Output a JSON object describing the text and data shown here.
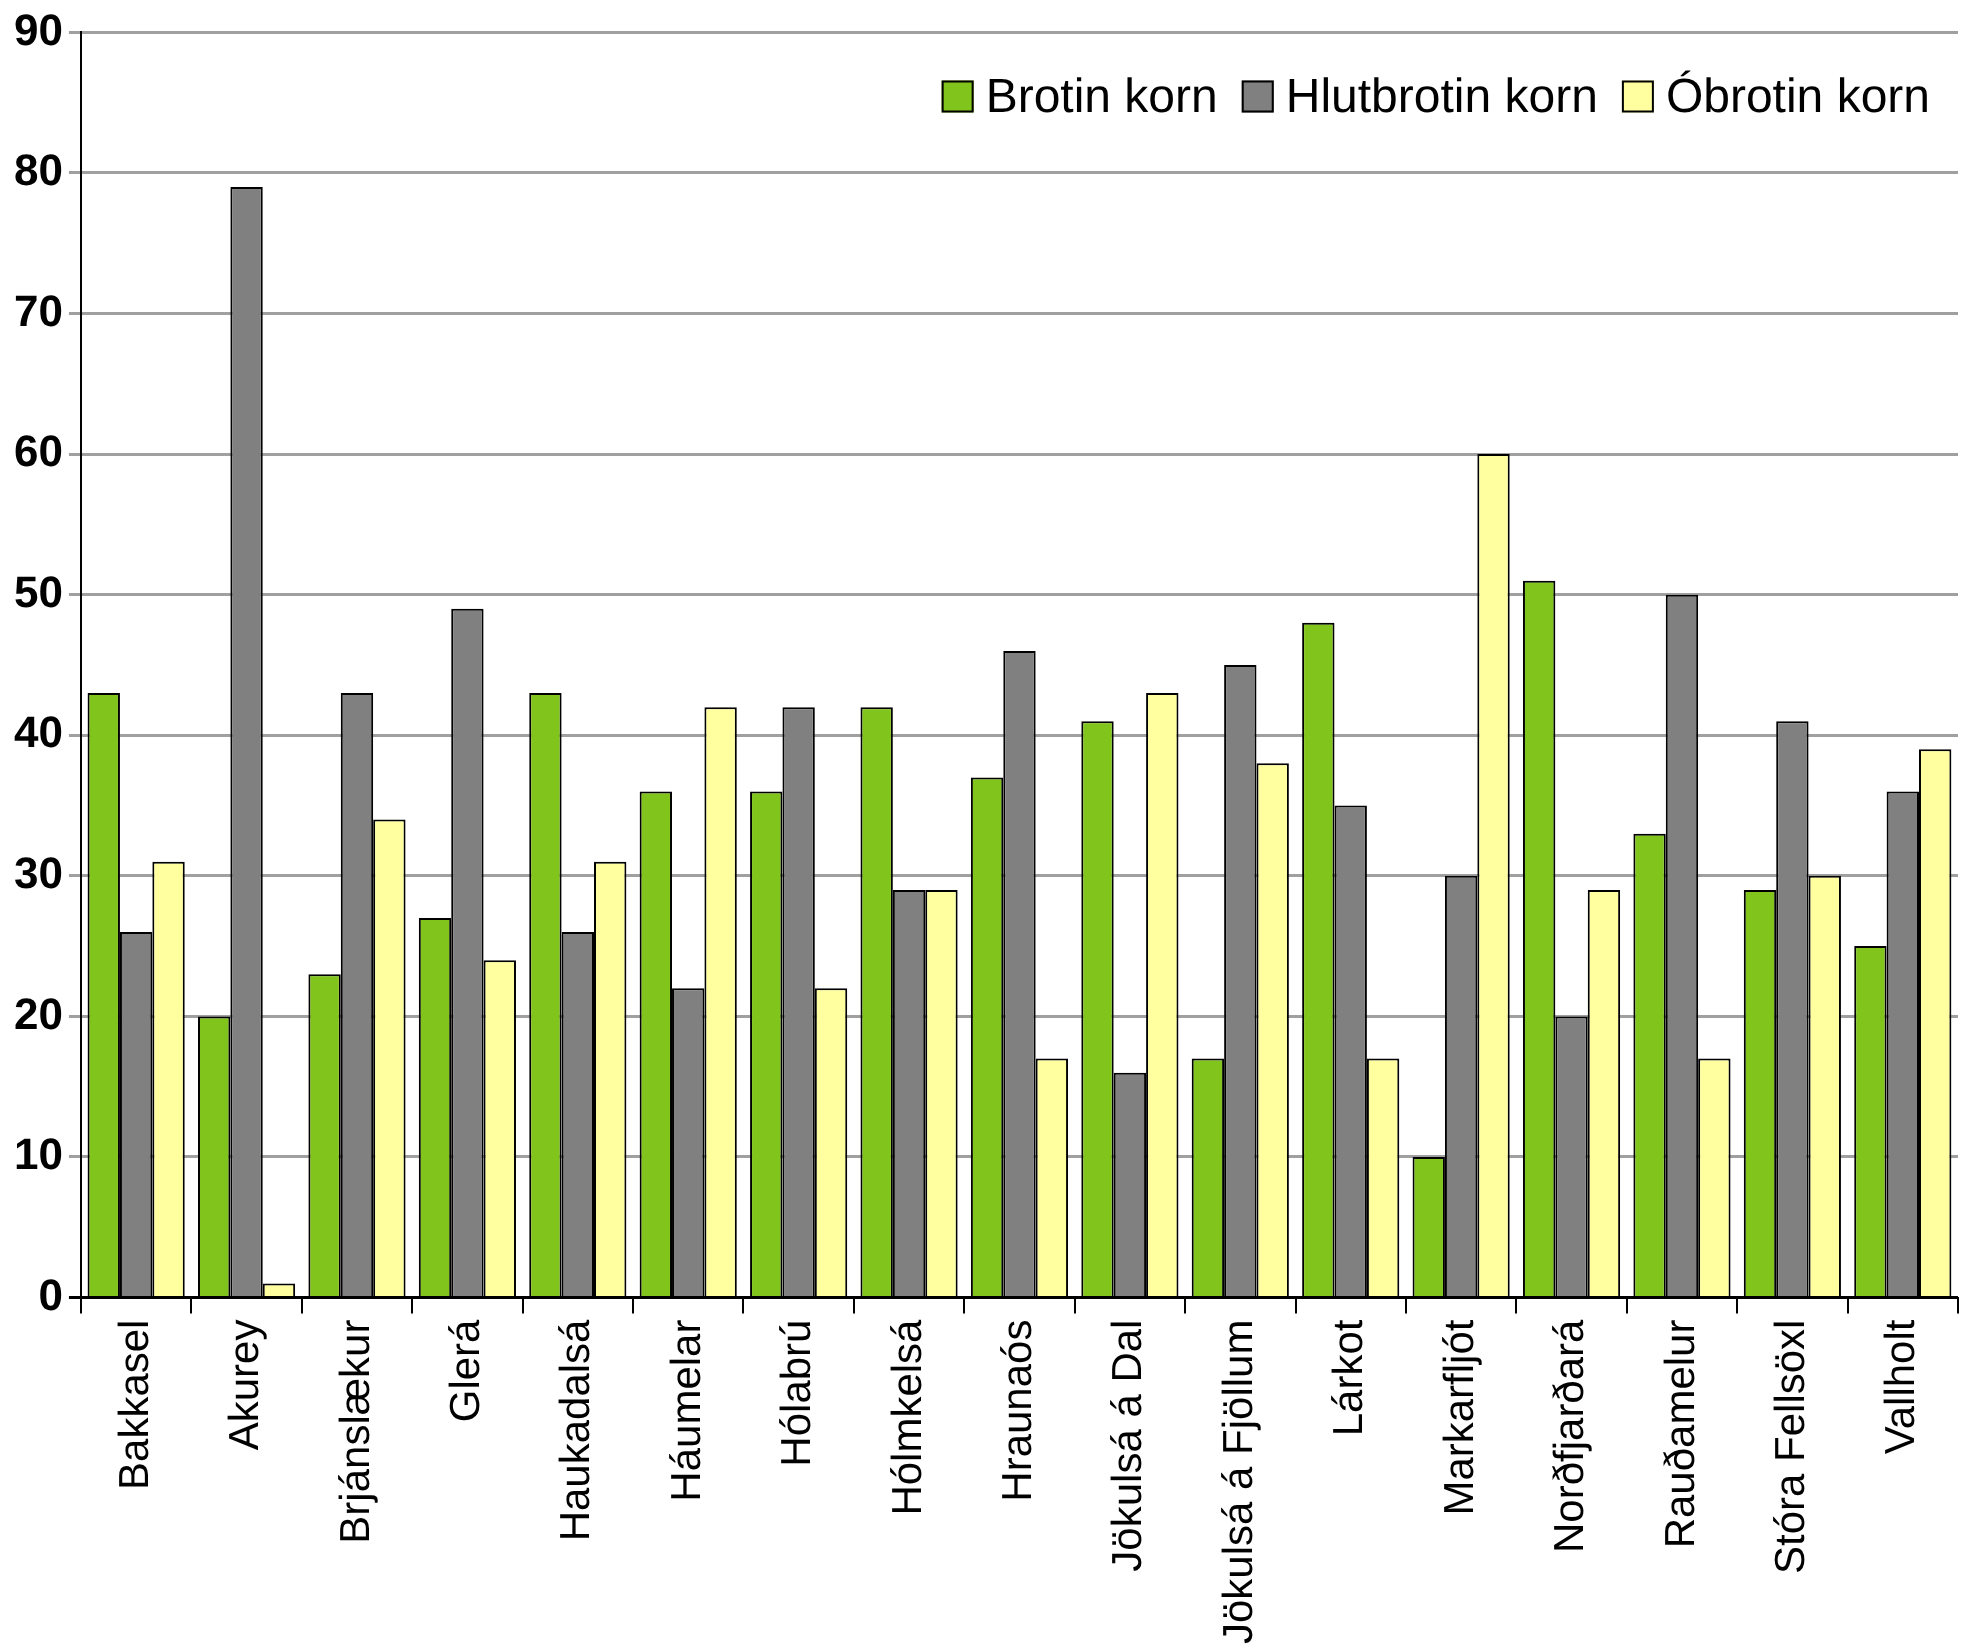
{
  "chart_data": {
    "type": "bar",
    "categories": [
      "Bakkasel",
      "Akurey",
      "Brjánslækur",
      "Glerá",
      "Haukadalsá",
      "Háumelar",
      "Hólabrú",
      "Hólmkelsá",
      "Hraunaós",
      "Jökulsá á Dal",
      "Jökulsá á Fjöllum",
      "Lárkot",
      "Markarfljót",
      "Norðfjarðará",
      "Rauðamelur",
      "Stóra Fellsöxl",
      "Vallholt"
    ],
    "series": [
      {
        "name": "Brotin korn",
        "color": "#80c41c",
        "values": [
          43,
          20,
          23,
          27,
          43,
          36,
          36,
          42,
          37,
          41,
          17,
          48,
          10,
          51,
          33,
          29,
          25
        ]
      },
      {
        "name": "Hlutbrotin korn",
        "color": "#808080",
        "values": [
          26,
          79,
          43,
          49,
          26,
          22,
          42,
          29,
          46,
          16,
          45,
          35,
          30,
          20,
          50,
          41,
          36
        ]
      },
      {
        "name": "Óbrotin korn",
        "color": "#ffffa0",
        "values": [
          31,
          1,
          34,
          24,
          31,
          42,
          22,
          29,
          17,
          43,
          38,
          17,
          60,
          29,
          17,
          30,
          39
        ]
      }
    ],
    "ylim": [
      0,
      90
    ],
    "yticks": [
      0,
      10,
      20,
      30,
      40,
      50,
      60,
      70,
      80,
      90
    ],
    "grid": "y",
    "legend": "top right"
  }
}
